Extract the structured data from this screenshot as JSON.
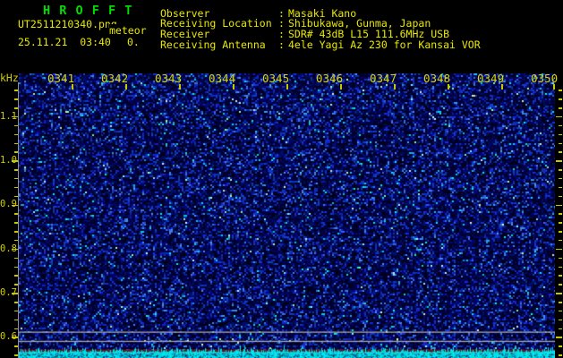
{
  "header": {
    "app_title": "H R O F F T",
    "filename": "UT2511210340.png",
    "comment": "meteor",
    "datetime": "25.11.21  03:40",
    "count": "0.",
    "separator": ":",
    "info": [
      {
        "label": "Observer",
        "value": "Masaki Kano"
      },
      {
        "label": "Receiving Location",
        "value": "Shibukawa, Gunma, Japan"
      },
      {
        "label": "Receiver",
        "value": "SDR# 43dB L15 111.6MHz USB"
      },
      {
        "label": "Receiving Antenna",
        "value": "4ele Yagi Az 230 for Kansai VOR"
      }
    ]
  },
  "spectrogram": {
    "freq_axis_unit": "kHz",
    "freq_labels": [
      "1.1",
      "1.0",
      "0.9",
      "0.8",
      "0.7",
      "0.6"
    ],
    "time_labels": [
      "0341",
      "0342",
      "0343",
      "0344",
      "0345",
      "0346",
      "0347",
      "0348",
      "0349",
      "0350"
    ],
    "colors": {
      "title_green": "#00dd00",
      "header_yellow": "#e8e800",
      "axis_yellow": "#d8d800",
      "noise_blue": "#0020a0",
      "grid_grey": "#aaaaaa",
      "level_band_cyan": "#00e4e4",
      "baseline_dark_red": "#6e1616",
      "background": "#000000"
    }
  }
}
